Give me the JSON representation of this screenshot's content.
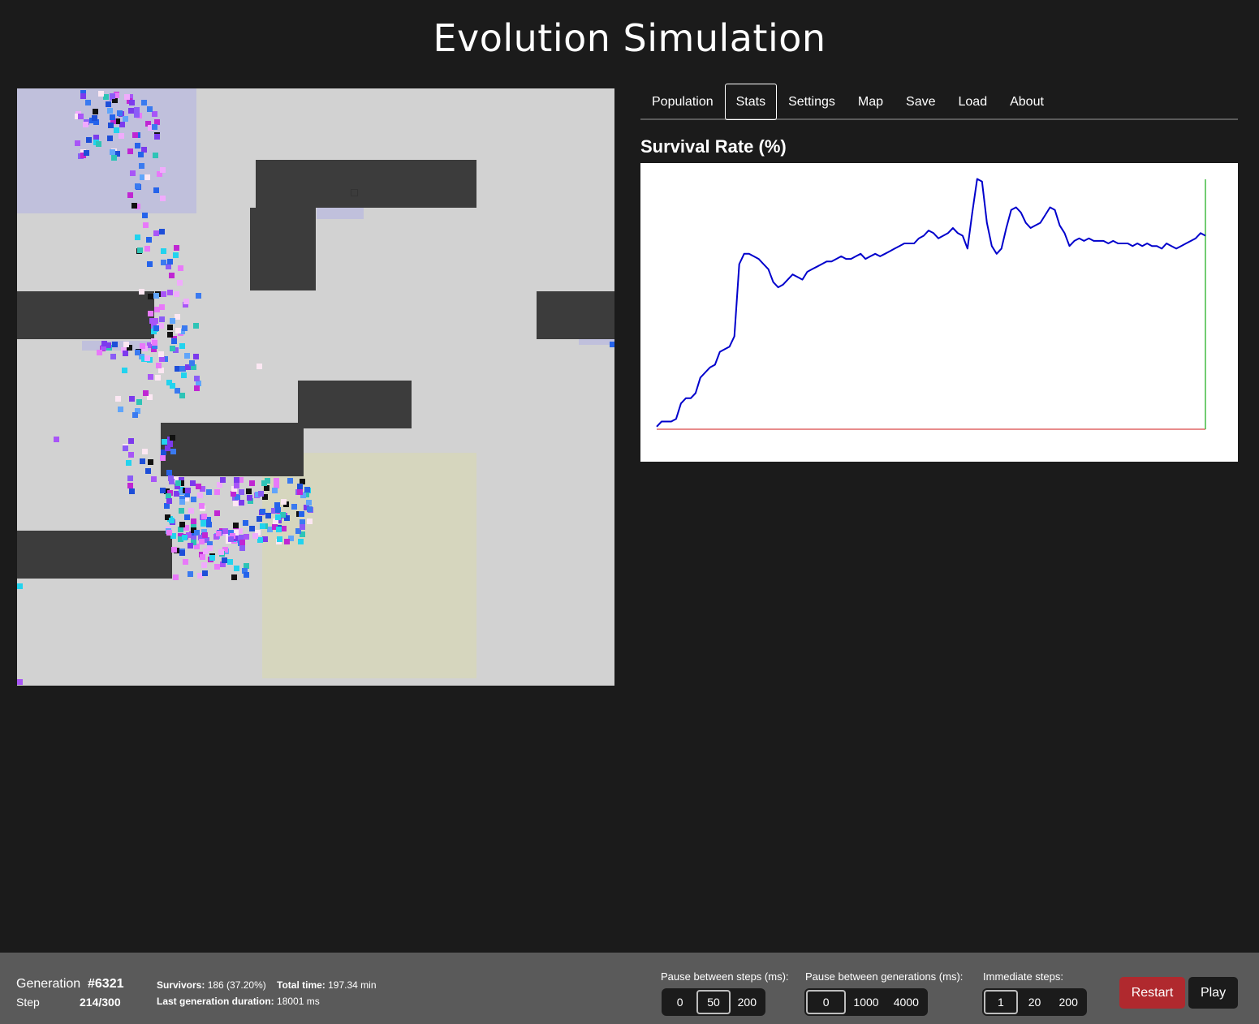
{
  "header": {
    "title": "Evolution Simulation"
  },
  "tabs": [
    {
      "label": "Population",
      "active": false
    },
    {
      "label": "Stats",
      "active": true
    },
    {
      "label": "Settings",
      "active": false
    },
    {
      "label": "Map",
      "active": false
    },
    {
      "label": "Save",
      "active": false
    },
    {
      "label": "Load",
      "active": false
    },
    {
      "label": "About",
      "active": false
    }
  ],
  "stats": {
    "title": "Survival Rate (%)",
    "chart_data": {
      "type": "line",
      "title": "Survival Rate (%)",
      "xlabel": "",
      "ylabel": "",
      "ylim": [
        0,
        100
      ],
      "grid": false,
      "series": [
        {
          "color": "#0000cc",
          "values": [
            1,
            3,
            3,
            3,
            4,
            10,
            12,
            12,
            14,
            20,
            22,
            24,
            25,
            30,
            31,
            32,
            36,
            64,
            68,
            68,
            67,
            66,
            64,
            62,
            57,
            55,
            56,
            58,
            60,
            59,
            58,
            61,
            62,
            63,
            64,
            65,
            65,
            66,
            67,
            66,
            66,
            67,
            68,
            66,
            67,
            68,
            67,
            68,
            69,
            70,
            71,
            72,
            72,
            72,
            74,
            75,
            77,
            76,
            74,
            75,
            76,
            78,
            76,
            75,
            70,
            84,
            97,
            96,
            80,
            71,
            68,
            70,
            78,
            85,
            86,
            84,
            80,
            78,
            79,
            80,
            83,
            86,
            85,
            79,
            76,
            71,
            73,
            74,
            73,
            74,
            73,
            73,
            73,
            72,
            73,
            72,
            72,
            72,
            71,
            72,
            71,
            72,
            71,
            71,
            70,
            72,
            71,
            70,
            71,
            72,
            73,
            74,
            76,
            75
          ]
        },
        {
          "color": "#e06666",
          "values": [
            0
          ]
        }
      ],
      "marker": {
        "color": "#44bb44",
        "position": "last-x"
      }
    }
  },
  "footer": {
    "generation_label": "Generation",
    "generation_value": "#6321",
    "step_label": "Step",
    "step_value": "214/300",
    "survivors_label": "Survivors:",
    "survivors_value": "186 (37.20%)",
    "total_time_label": "Total time:",
    "total_time_value": "197.34 min",
    "last_gen_label": "Last generation duration:",
    "last_gen_value": "18001 ms",
    "pause_steps": {
      "label": "Pause between steps (ms):",
      "options": [
        "0",
        "50",
        "200"
      ],
      "selected": "50"
    },
    "pause_generations": {
      "label": "Pause between generations (ms):",
      "options": [
        "0",
        "1000",
        "4000"
      ],
      "selected": "0"
    },
    "immediate_steps": {
      "label": "Immediate steps:",
      "options": [
        "1",
        "20",
        "200"
      ],
      "selected": "1"
    },
    "restart_label": "Restart",
    "play_label": "Play"
  },
  "world": {
    "colors": {
      "background": "#d2d2d2",
      "wall": "#3c3c3c",
      "reproduction_zone": "#c0c0dc",
      "safe_zone": "#d6d6be"
    }
  }
}
